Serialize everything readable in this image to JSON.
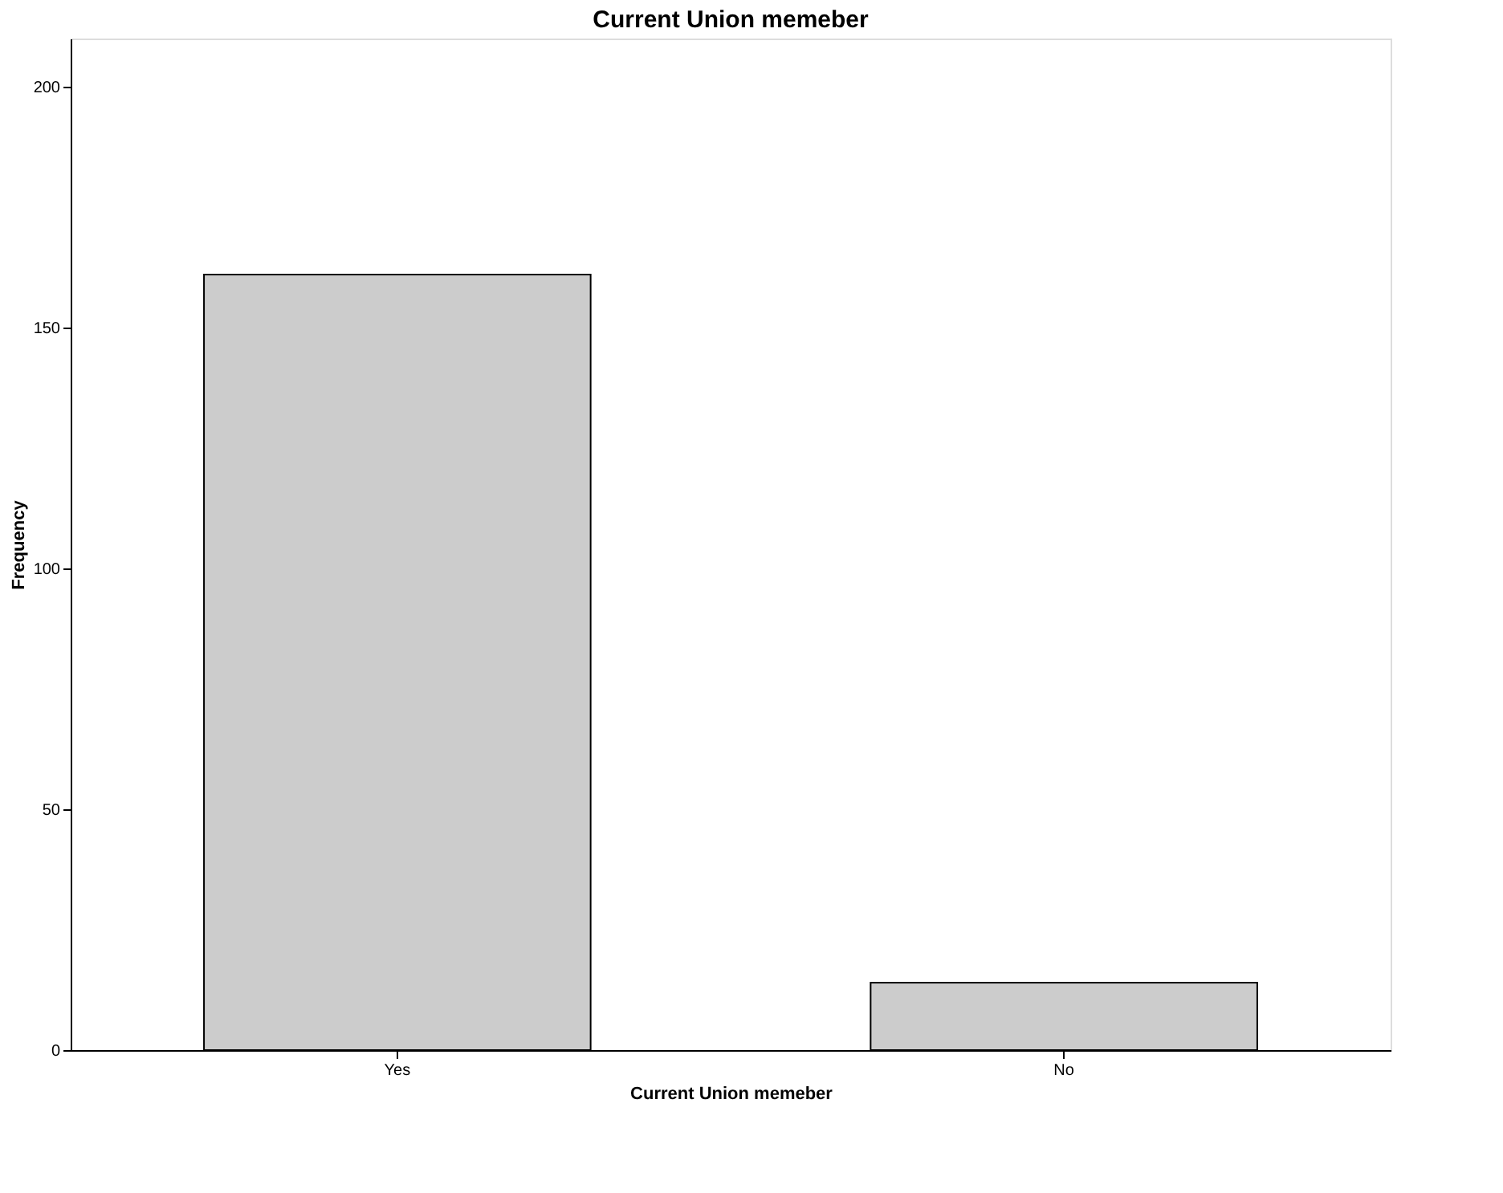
{
  "chart_data": {
    "type": "bar",
    "title": "Current Union memeber",
    "xlabel": "Current Union memeber",
    "ylabel": "Frequency",
    "categories": [
      "Yes",
      "No"
    ],
    "values": [
      161,
      14
    ],
    "color": "#cccccc",
    "ylim": [
      0,
      210
    ],
    "yticks": [
      0,
      50,
      100,
      150,
      200
    ],
    "grid": false
  }
}
